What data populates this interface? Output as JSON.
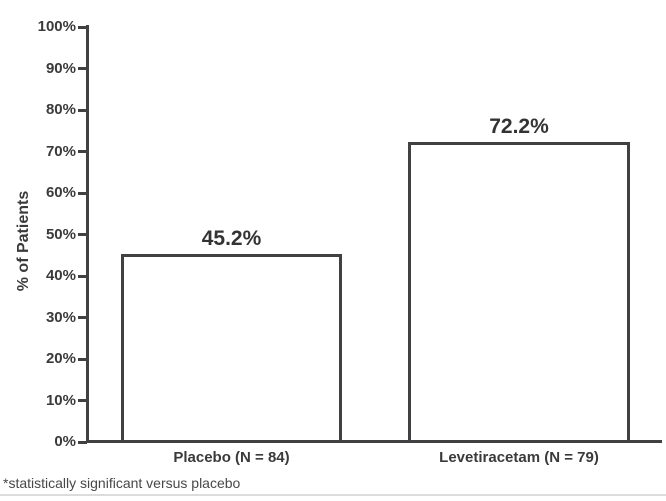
{
  "chart_data": {
    "type": "bar",
    "title": "",
    "xlabel": "",
    "ylabel": "% of Patients",
    "categories": [
      "Placebo (N = 84)",
      "Levetiracetam (N = 79)"
    ],
    "values": [
      45.2,
      72.2
    ],
    "value_labels": [
      "45.2%",
      "72.2%"
    ],
    "ylim": [
      0,
      100
    ],
    "yticks": [
      0,
      10,
      20,
      30,
      40,
      50,
      60,
      70,
      80,
      90,
      100
    ],
    "ytick_labels": [
      "0%",
      "10%",
      "20%",
      "30%",
      "40%",
      "50%",
      "60%",
      "70%",
      "80%",
      "90%",
      "100%"
    ],
    "grid": false,
    "legend": false,
    "bar_fill": "#ffffff",
    "bar_border_color": "#414143",
    "annotations": [
      {
        "category": "Levetiracetam (N = 79)",
        "symbol": "*"
      }
    ]
  },
  "footnote": "*statistically significant versus placebo",
  "colors": {
    "axis": "#414143",
    "text": "#3a3a3c",
    "background": "#ffffff"
  }
}
